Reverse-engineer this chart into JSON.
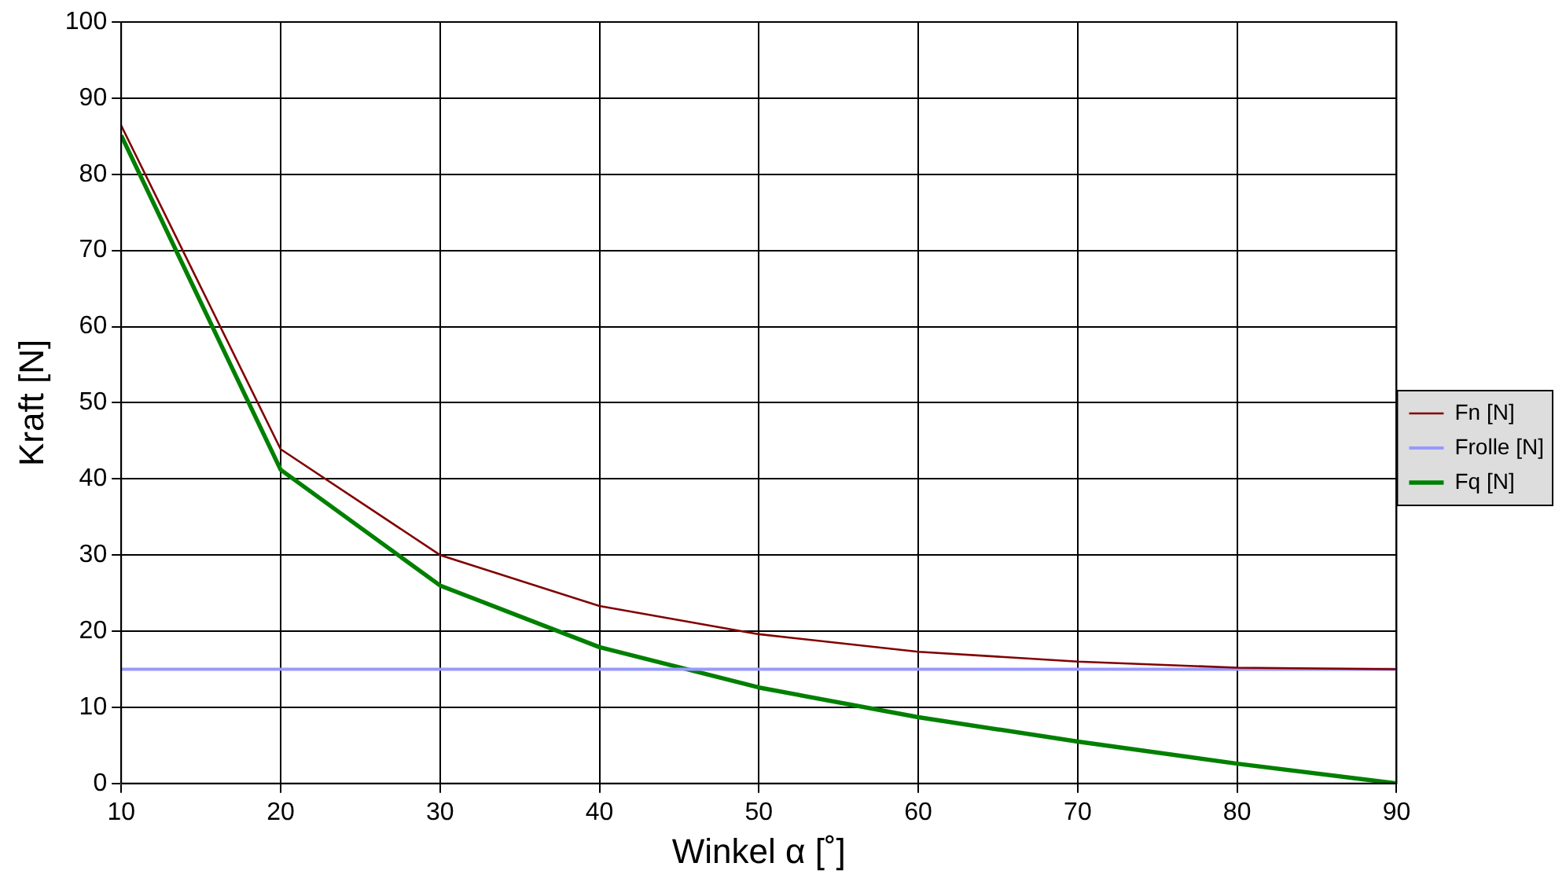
{
  "chart_data": {
    "type": "line",
    "xlabel": "Winkel α [˚]",
    "ylabel": "Kraft [N]",
    "x": [
      10,
      20,
      30,
      40,
      50,
      60,
      70,
      80,
      90
    ],
    "series": [
      {
        "name": "Fn [N]",
        "color": "#800000",
        "values": [
          86.4,
          43.9,
          30.0,
          23.3,
          19.6,
          17.3,
          16.0,
          15.2,
          15.0
        ]
      },
      {
        "name": "Frolle [N]",
        "color": "#9999ff",
        "values": [
          15,
          15,
          15,
          15,
          15,
          15,
          15,
          15,
          15
        ]
      },
      {
        "name": "Fq [N]",
        "color": "#008000",
        "values": [
          85.1,
          41.2,
          26.0,
          17.9,
          12.6,
          8.7,
          5.5,
          2.6,
          0
        ]
      }
    ],
    "xlim": [
      10,
      90
    ],
    "xticks": [
      10,
      20,
      30,
      40,
      50,
      60,
      70,
      80,
      90
    ],
    "ylim": [
      0,
      100
    ],
    "yticks": [
      0,
      10,
      20,
      30,
      40,
      50,
      60,
      70,
      80,
      90,
      100
    ],
    "grid": true,
    "legend": "right",
    "marker": "none",
    "line_style": "solid"
  }
}
